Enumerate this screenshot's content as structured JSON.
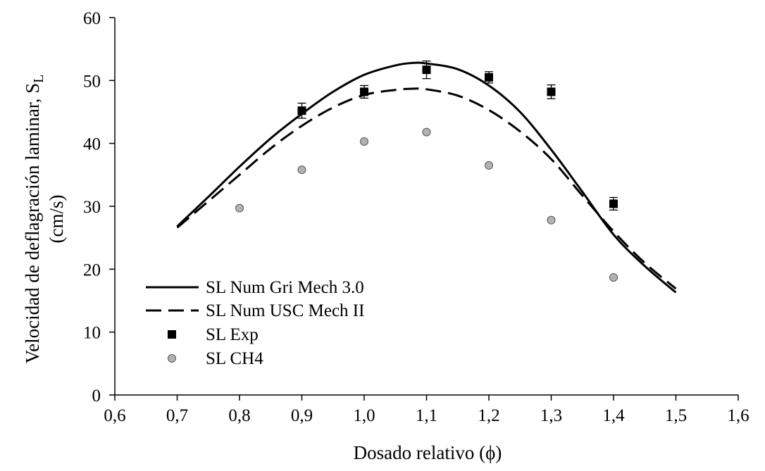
{
  "chart_data": {
    "type": "line",
    "title": "",
    "xlabel": "Dosado relativo (ϕ)",
    "ylabel": {
      "line1_main": "Velocidad de deflagración laminar, S",
      "line1_sub": "L",
      "line2": "(cm/s)"
    },
    "xlim": [
      0.6,
      1.6
    ],
    "ylim": [
      0,
      60
    ],
    "x_ticks": [
      0.6,
      0.7,
      0.8,
      0.9,
      1.0,
      1.1,
      1.2,
      1.3,
      1.4,
      1.5,
      1.6
    ],
    "x_tick_labels": [
      "0,6",
      "0,7",
      "0,8",
      "0,9",
      "1,0",
      "1,1",
      "1,2",
      "1,3",
      "1,4",
      "1,5",
      "1,6"
    ],
    "y_ticks": [
      0,
      10,
      20,
      30,
      40,
      50,
      60
    ],
    "y_tick_labels": [
      "0",
      "10",
      "20",
      "30",
      "40",
      "50",
      "60"
    ],
    "grid": false,
    "legend_position": "bottom-left",
    "series": [
      {
        "name": "SL Num Gri Mech 3.0",
        "style": "solid-line",
        "color": "#000000",
        "x": [
          0.7,
          0.75,
          0.8,
          0.85,
          0.9,
          0.95,
          1.0,
          1.05,
          1.08,
          1.1,
          1.15,
          1.2,
          1.25,
          1.3,
          1.35,
          1.4,
          1.45,
          1.5
        ],
        "y": [
          26.8,
          31.5,
          36.3,
          40.8,
          44.7,
          48.2,
          50.9,
          52.4,
          52.8,
          52.7,
          51.8,
          49.2,
          45.0,
          39.0,
          32.3,
          25.5,
          20.5,
          16.3
        ]
      },
      {
        "name": "SL Num USC Mech II",
        "style": "dashed-line",
        "color": "#000000",
        "x": [
          0.7,
          0.75,
          0.8,
          0.85,
          0.9,
          0.95,
          1.0,
          1.05,
          1.08,
          1.1,
          1.15,
          1.2,
          1.25,
          1.3,
          1.35,
          1.4,
          1.45,
          1.5
        ],
        "y": [
          26.6,
          30.8,
          35.0,
          39.2,
          42.8,
          45.7,
          47.7,
          48.5,
          48.7,
          48.6,
          47.6,
          45.3,
          41.9,
          37.5,
          31.7,
          26.0,
          21.0,
          16.9
        ]
      },
      {
        "name": "SL Exp",
        "style": "square-marker",
        "color": "#000000",
        "x": [
          0.9,
          1.0,
          1.1,
          1.2,
          1.3,
          1.4
        ],
        "y": [
          45.2,
          48.2,
          51.7,
          50.5,
          48.2,
          30.4
        ],
        "error": [
          1.2,
          1.0,
          1.4,
          0.9,
          1.1,
          1.0
        ]
      },
      {
        "name": "SL CH4",
        "style": "circle-marker",
        "color": "#b2b2b2",
        "x": [
          0.8,
          0.9,
          1.0,
          1.1,
          1.2,
          1.3,
          1.4
        ],
        "y": [
          29.7,
          35.8,
          40.3,
          41.8,
          36.5,
          27.8,
          18.7
        ]
      }
    ]
  }
}
